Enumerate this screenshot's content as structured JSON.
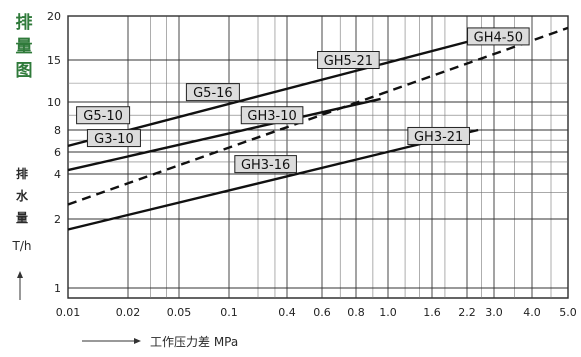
{
  "chart_data": {
    "type": "line",
    "title": "排量图",
    "ylabel": "排水量 T/h",
    "xlabel": "工作压力差 MPa",
    "x_ticks": [
      0.01,
      0.02,
      0.05,
      0.1,
      0.4,
      0.6,
      0.8,
      1.0,
      1.6,
      2.2,
      3.0,
      4.0,
      5.0
    ],
    "x_tick_labels": [
      "0.01",
      "0.02",
      "0.05",
      "0.1",
      "0.4",
      "0.6",
      "0.8",
      "1.0",
      "1.6",
      "2.2",
      "3.0",
      "4.0",
      "5.0"
    ],
    "y_ticks": [
      1,
      2,
      4,
      6,
      8,
      10,
      15,
      20
    ],
    "y_tick_labels": [
      "1",
      "2",
      "4",
      "6",
      "8",
      "10",
      "15",
      "20"
    ],
    "grid": true,
    "series": [
      {
        "name": "G5-10 / G5-16 / GH5-21",
        "style": "solid",
        "x": [
          0.01,
          2.3
        ],
        "y": [
          6.5,
          17
        ]
      },
      {
        "name": "G3-10 / GH3-10",
        "style": "solid",
        "x": [
          0.01,
          0.95
        ],
        "y": [
          4.3,
          10.3
        ]
      },
      {
        "name": "GH4-50",
        "style": "dashed",
        "x": [
          0.01,
          5.0
        ],
        "y": [
          2.5,
          18.5
        ]
      },
      {
        "name": "GH3-16 / GH3-21",
        "style": "solid",
        "x": [
          0.01,
          2.5
        ],
        "y": [
          1.8,
          8.0
        ]
      }
    ],
    "annotations": [
      {
        "text": "G5-10",
        "x": 0.015,
        "y": 9.0
      },
      {
        "text": "G3-10",
        "x": 0.017,
        "y": 7.2
      },
      {
        "text": "G5-16",
        "x": 0.08,
        "y": 11.0
      },
      {
        "text": "GH3-10",
        "x": 0.28,
        "y": 9.0
      },
      {
        "text": "GH5-21",
        "x": 0.75,
        "y": 15.0
      },
      {
        "text": "GH4-50",
        "x": 3.1,
        "y": 17.5
      },
      {
        "text": "GH3-21",
        "x": 1.7,
        "y": 7.4
      },
      {
        "text": "GH3-16",
        "x": 0.24,
        "y": 4.8
      }
    ]
  }
}
